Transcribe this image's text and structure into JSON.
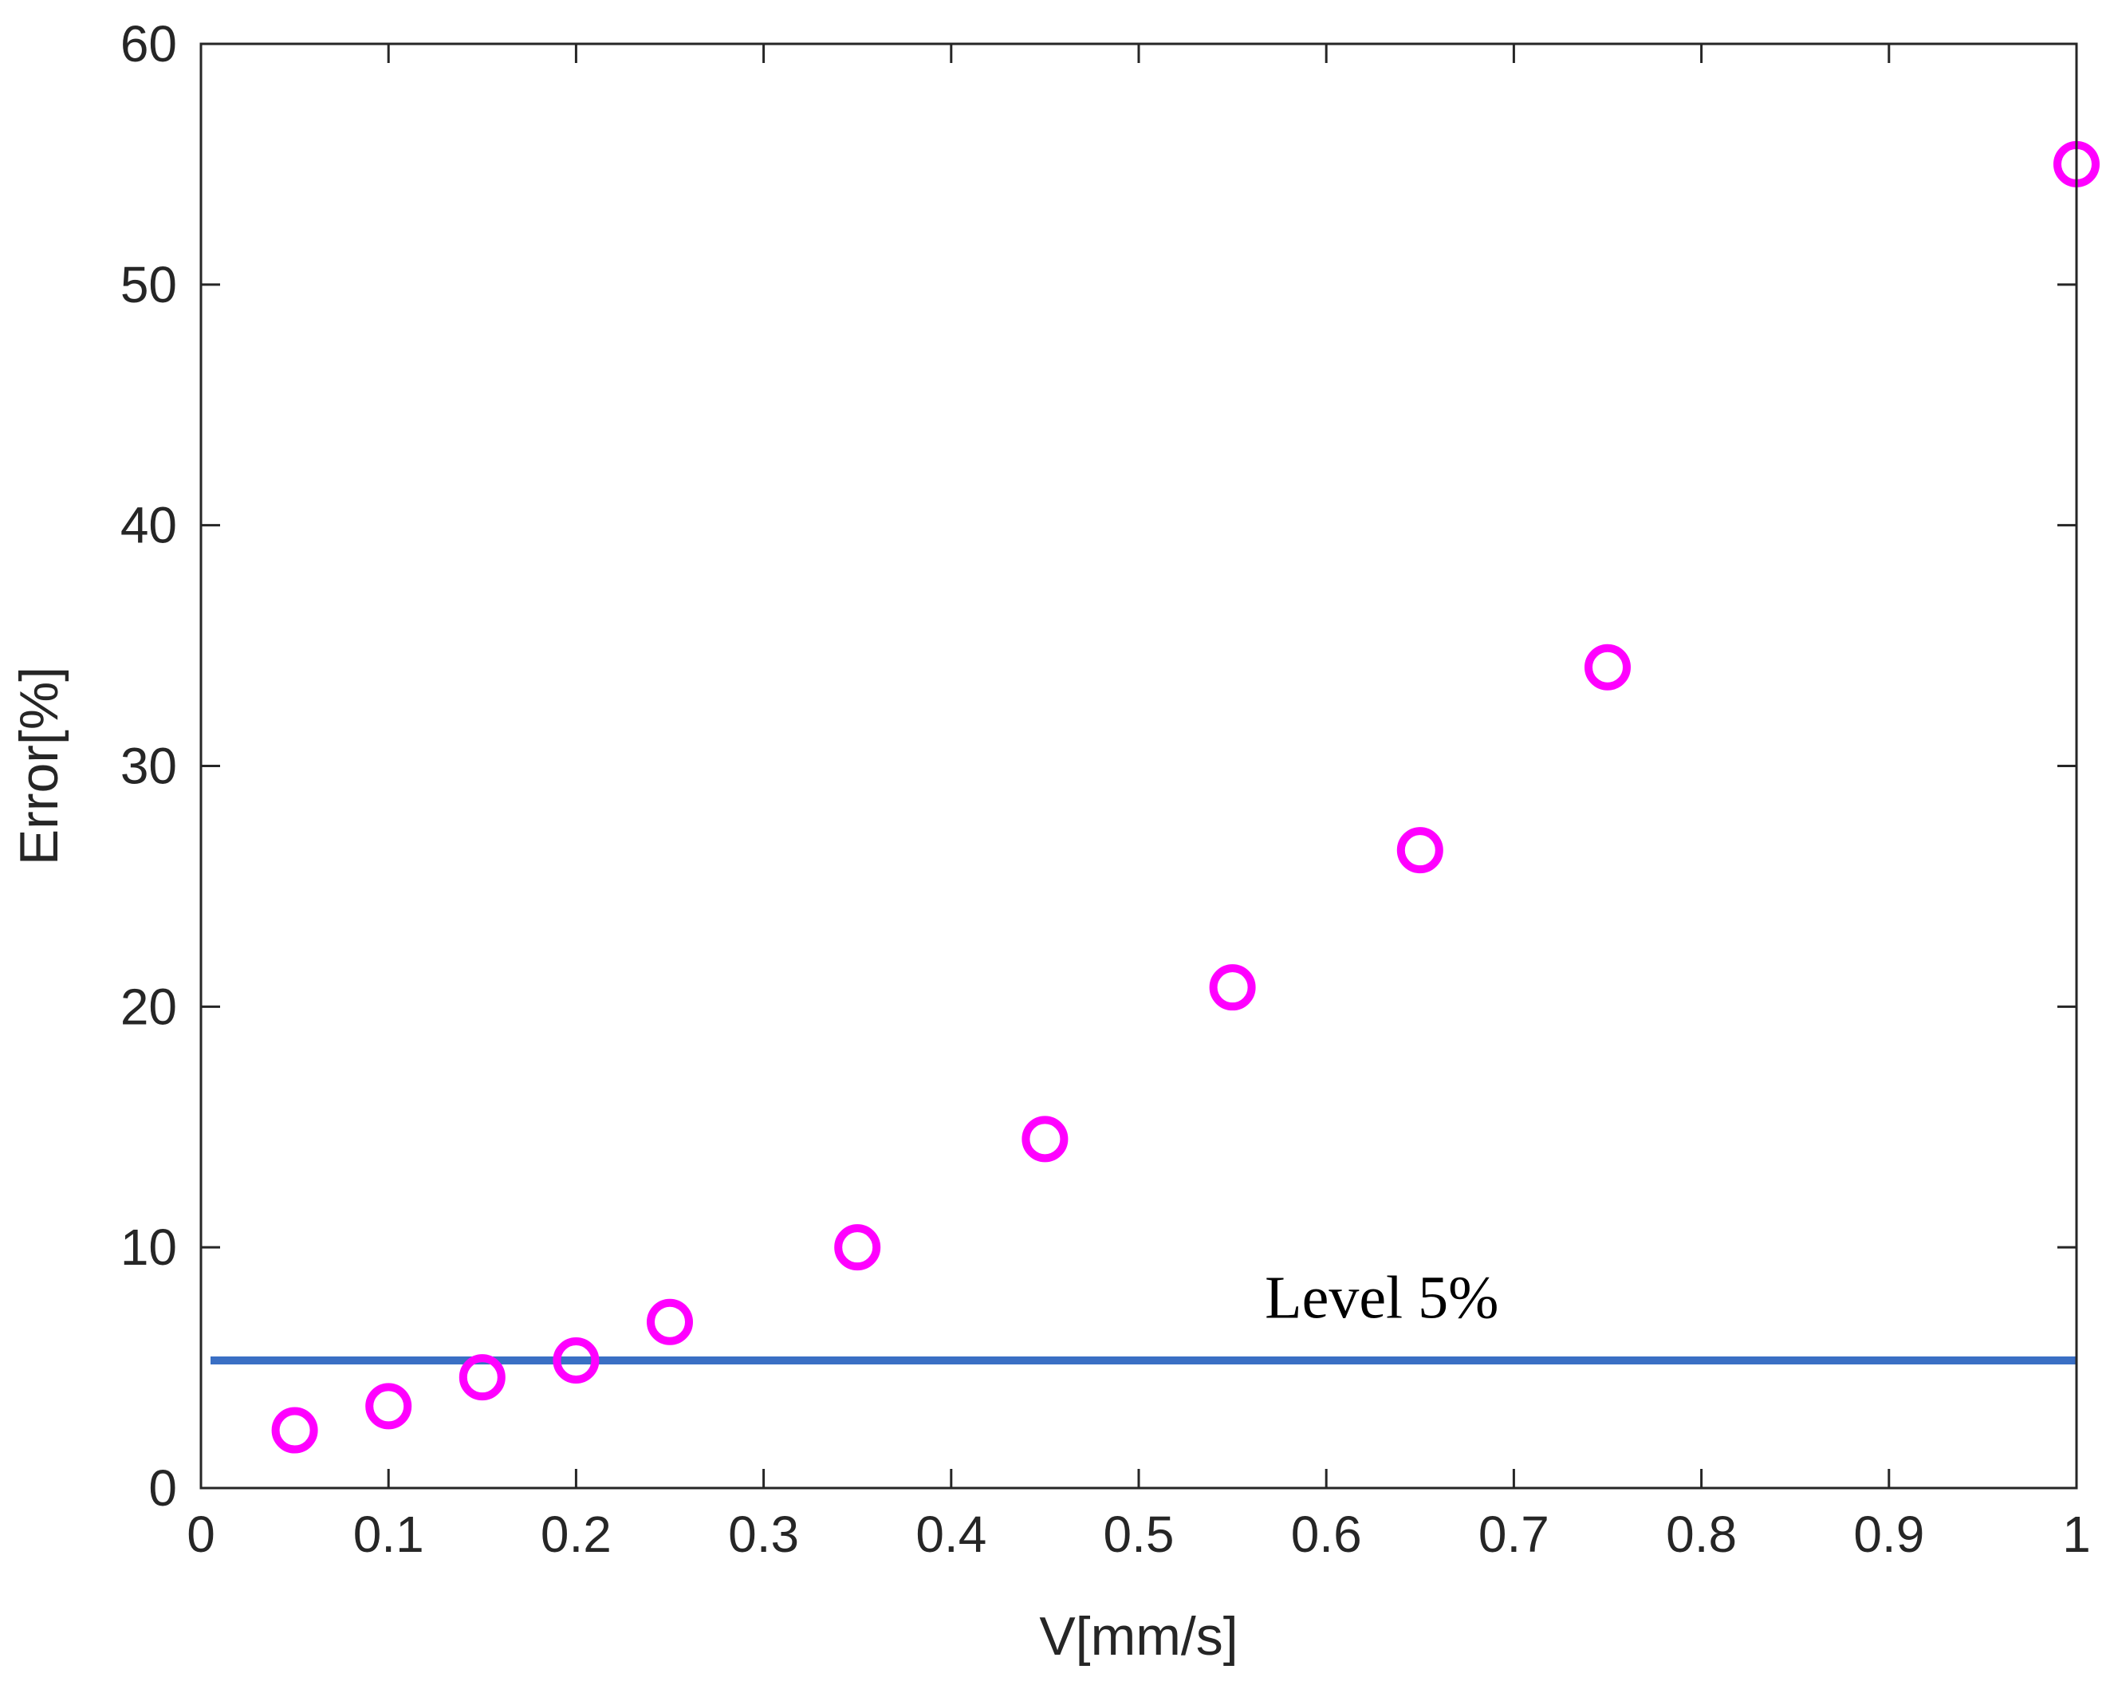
{
  "chart_data": {
    "type": "scatter",
    "title": "",
    "xlabel": "V[mm/s]",
    "ylabel": "Error[%]",
    "xlim": [
      0,
      1
    ],
    "ylim": [
      0,
      60
    ],
    "x_ticks": [
      0,
      0.1,
      0.2,
      0.3,
      0.4,
      0.5,
      0.6,
      0.7,
      0.8,
      0.9,
      1
    ],
    "x_tick_labels": [
      "0",
      "0.1",
      "0.2",
      "0.3",
      "0.4",
      "0.5",
      "0.6",
      "0.7",
      "0.8",
      "0.9",
      "1"
    ],
    "y_ticks": [
      0,
      10,
      20,
      30,
      40,
      50,
      60
    ],
    "y_tick_labels": [
      "0",
      "10",
      "20",
      "30",
      "40",
      "50",
      "60"
    ],
    "grid": false,
    "series": [
      {
        "marker": "circle-open",
        "color": "#ff00ff",
        "x": [
          0.05,
          0.1,
          0.15,
          0.2,
          0.25,
          0.35,
          0.45,
          0.55,
          0.65,
          0.75,
          1.0
        ],
        "y": [
          2.4,
          3.4,
          4.6,
          5.3,
          6.9,
          10.0,
          14.5,
          20.8,
          26.5,
          34.1,
          55.0
        ]
      }
    ],
    "reference_line": {
      "y": 5.3,
      "color": "#3a6fc4"
    },
    "annotations": [
      {
        "text": "Level 5%",
        "x": 0.58,
        "y": 8.0
      }
    ],
    "axis_color": "#262626",
    "background": "#ffffff"
  }
}
